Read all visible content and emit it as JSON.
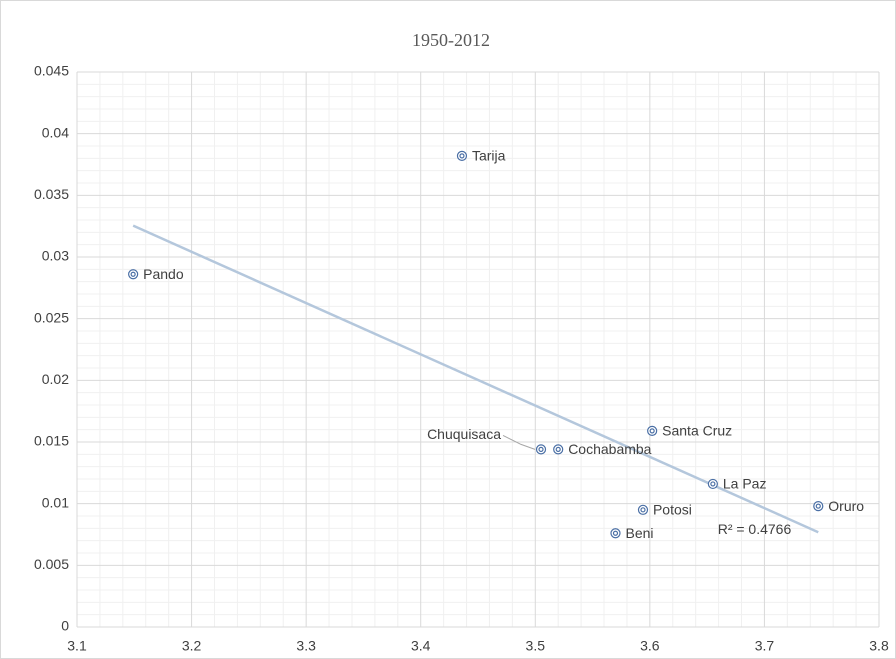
{
  "chart_data": {
    "type": "scatter",
    "title": "1950-2012",
    "x": [
      3.149,
      3.436,
      3.505,
      3.52,
      3.602,
      3.655,
      3.594,
      3.57,
      3.747
    ],
    "values": [
      0.0286,
      0.0382,
      0.0144,
      0.0144,
      0.0159,
      0.0116,
      0.0095,
      0.0076,
      0.0098
    ],
    "labels": [
      "Pando",
      "Tarija",
      "Chuquisaca",
      "Cochabamba",
      "Santa Cruz",
      "La Paz",
      "Potosi",
      "Beni",
      "Oruro"
    ],
    "color": "#4a6fa5",
    "trendline": {
      "type": "linear",
      "color": "#b4c7dc",
      "label": "R² = 0.4766"
    },
    "xlim": [
      3.1,
      3.8
    ],
    "xticks": [
      3.1,
      3.2,
      3.3,
      3.4,
      3.5,
      3.6,
      3.7,
      3.8
    ],
    "ylim": [
      0,
      0.045
    ],
    "yticks": [
      0,
      0.005,
      0.01,
      0.015,
      0.02,
      0.025,
      0.03,
      0.035,
      0.04,
      0.045
    ],
    "grid": true,
    "minor_grid": true
  }
}
